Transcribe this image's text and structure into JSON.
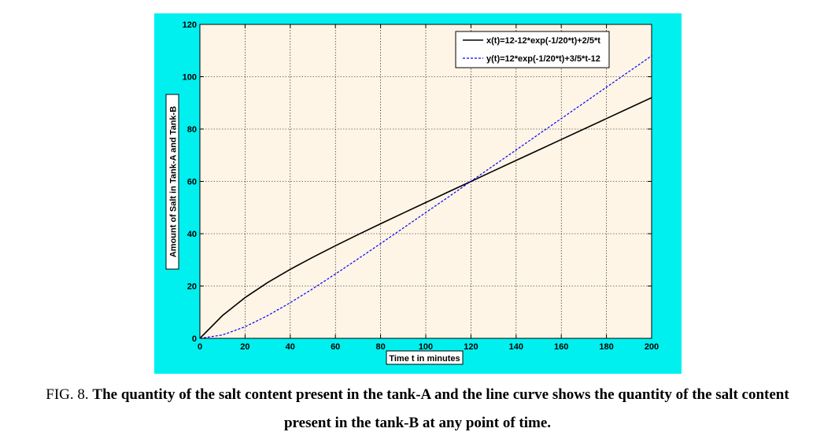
{
  "caption": {
    "label": "FIG. 8.",
    "line1": "The quantity of the salt content present in the tank-A and the line curve shows the quantity of the salt content",
    "line2": "present in the tank-B at any point of time."
  },
  "colors": {
    "figure_background": "#00f0f0",
    "plot_background": "#fff5e6",
    "series_x": "#000000",
    "series_y": "#0000ff"
  },
  "chart_data": {
    "type": "line",
    "title": "",
    "xlabel": "Time t in minutes",
    "ylabel": "Amount of Salt in Tank-A and Tank-B",
    "xlim": [
      0,
      200
    ],
    "ylim": [
      0,
      120
    ],
    "xticks": [
      0,
      20,
      40,
      60,
      80,
      100,
      120,
      140,
      160,
      180,
      200
    ],
    "yticks": [
      0,
      20,
      40,
      60,
      80,
      100,
      120
    ],
    "xtick_labels": [
      "0",
      "20",
      "40",
      "60",
      "80",
      "100",
      "120",
      "140",
      "160",
      "180",
      "200"
    ],
    "ytick_labels": [
      "0",
      "20",
      "40",
      "60",
      "80",
      "100",
      "120"
    ],
    "grid": true,
    "legend_position": "top-right",
    "x": [
      0,
      10,
      20,
      30,
      40,
      50,
      60,
      70,
      80,
      90,
      100,
      110,
      120,
      130,
      140,
      150,
      160,
      170,
      180,
      190,
      200
    ],
    "series": [
      {
        "name": "x(t)=12-12*exp(-1/20*t)+2/5*t",
        "style": "solid",
        "color": "#000000",
        "values": [
          0,
          8.72,
          15.59,
          21.32,
          26.38,
          31.01,
          35.4,
          39.64,
          43.78,
          47.87,
          51.92,
          55.97,
          59.97,
          63.99,
          68.0,
          72.0,
          76.0,
          80.0,
          84.0,
          88.0,
          92.0
        ]
      },
      {
        "name": "y(t)=12*exp(-1/20*t)+3/5*t-12",
        "style": "dashed",
        "color": "#0000ff",
        "values": [
          0,
          1.28,
          4.41,
          8.68,
          13.62,
          18.99,
          24.6,
          30.38,
          36.22,
          42.13,
          48.08,
          54.03,
          60.03,
          66.02,
          72.01,
          78.01,
          84.0,
          90.0,
          96.0,
          102.0,
          108.0
        ]
      }
    ]
  }
}
